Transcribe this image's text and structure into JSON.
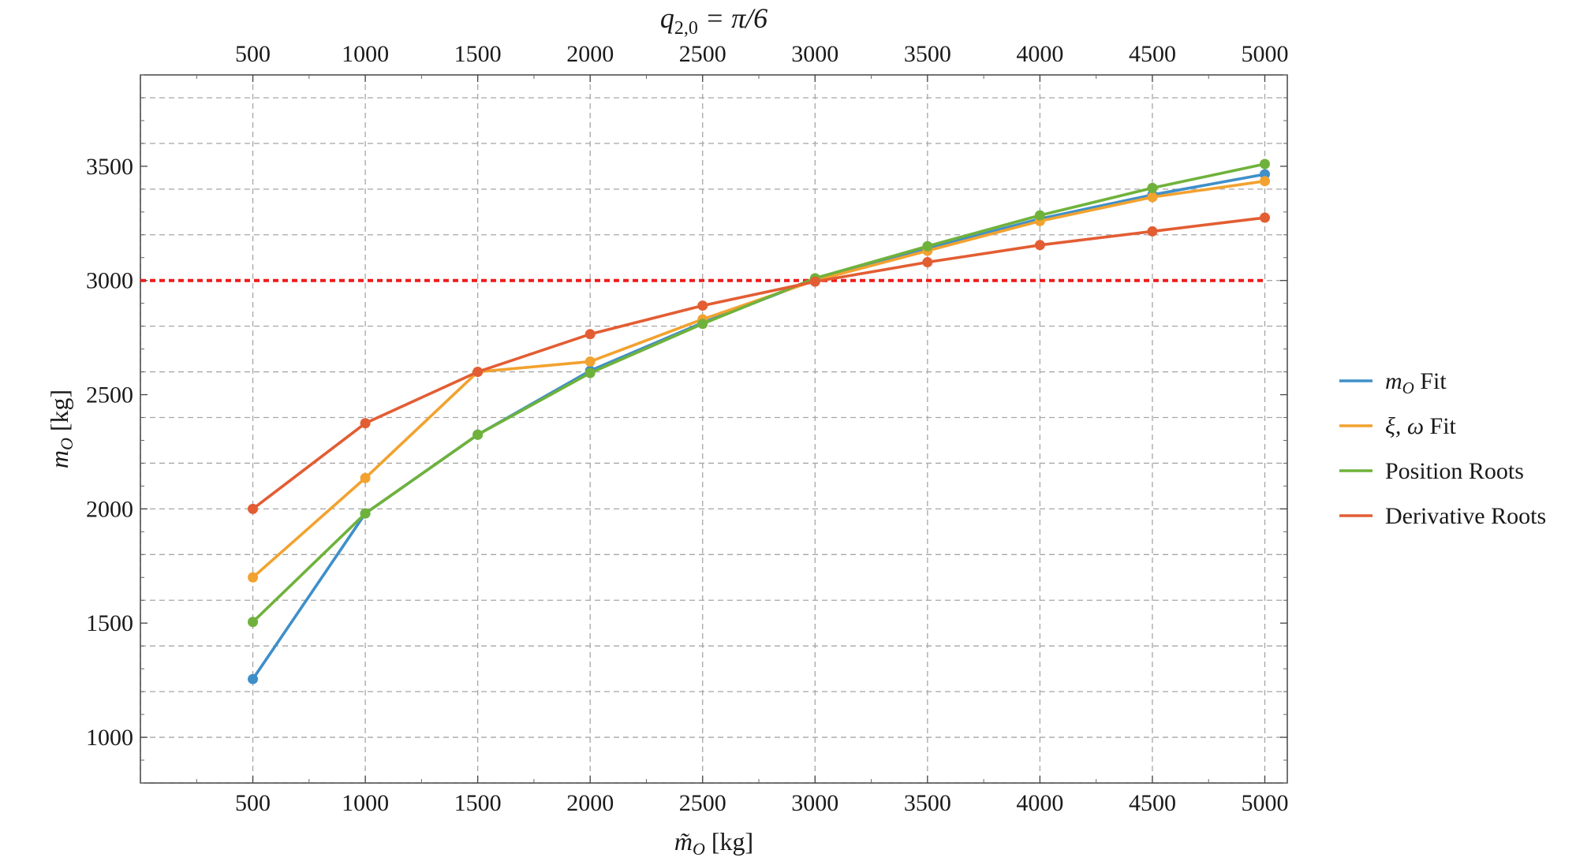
{
  "chart_data": {
    "type": "line",
    "title": "q",
    "title_subscript": "2,0",
    "title_rest": " = π/6",
    "xlabel": "m̃",
    "xlabel_subscript": "O",
    "xlabel_unit": " [kg]",
    "ylabel": "m",
    "ylabel_subscript": "O",
    "ylabel_unit": " [kg]",
    "xlim": [
      0,
      5100
    ],
    "ylim": [
      800,
      3900
    ],
    "x_ticks": [
      "500",
      "1000",
      "1500",
      "2000",
      "2500",
      "3000",
      "3500",
      "4000",
      "4500",
      "5000"
    ],
    "y_ticks": [
      "1000",
      "1500",
      "2000",
      "2500",
      "3000",
      "3500"
    ],
    "grid": true,
    "legend_position": "right",
    "x": [
      500,
      1000,
      1500,
      2000,
      2500,
      3000,
      3500,
      4000,
      4500,
      5000
    ],
    "reference_line": {
      "y": 3000,
      "color": "#ee1c1c",
      "style": "dashed"
    },
    "series": [
      {
        "name": "m",
        "name_subscript": "O",
        "name_rest": " Fit",
        "color": "#3f8fc9",
        "values": [
          1255,
          1980,
          2325,
          2605,
          2815,
          3005,
          3140,
          3270,
          3375,
          3465
        ]
      },
      {
        "name": "ξ, ω",
        "name_subscript": "",
        "name_rest": " Fit",
        "color": "#f2a22f",
        "values": [
          1700,
          2135,
          2600,
          2645,
          2830,
          3000,
          3130,
          3260,
          3365,
          3435
        ]
      },
      {
        "name": "Position Roots",
        "name_subscript": "",
        "name_rest": "",
        "color": "#6fb23b",
        "values": [
          1505,
          1980,
          2325,
          2595,
          2810,
          3010,
          3150,
          3285,
          3405,
          3510
        ]
      },
      {
        "name": "Derivative Roots",
        "name_subscript": "",
        "name_rest": "",
        "color": "#e35d33",
        "values": [
          2000,
          2375,
          2600,
          2765,
          2890,
          2995,
          3080,
          3155,
          3215,
          3275
        ]
      }
    ]
  }
}
